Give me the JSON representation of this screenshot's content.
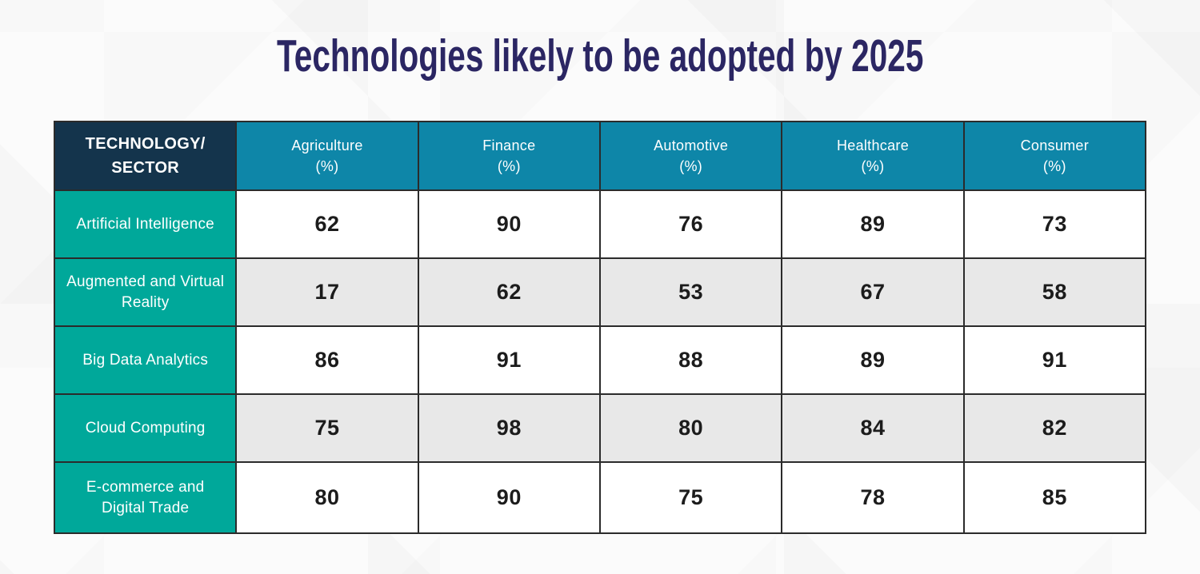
{
  "page": {
    "title": "Technologies likely to be adopted by 2025"
  },
  "colors": {
    "title_text": "#2b2663",
    "corner_header_bg": "#14344c",
    "column_header_bg": "#0e86a8",
    "row_header_bg": "#00a89a",
    "row_alt_bg": "#e8e8e8",
    "cell_border": "#2b2b2b",
    "value_text": "#1c1c1c"
  },
  "table": {
    "corner_header": "TECHNOLOGY/\nSECTOR",
    "unit": "(%)",
    "columns": [
      "Agriculture",
      "Finance",
      "Automotive",
      "Healthcare",
      "Consumer"
    ],
    "rows": [
      {
        "label": "Artificial Intelligence",
        "values": [
          "62",
          "90",
          "76",
          "89",
          "73"
        ]
      },
      {
        "label": "Augmented and Virtual Reality",
        "values": [
          "17",
          "62",
          "53",
          "67",
          "58"
        ]
      },
      {
        "label": "Big Data Analytics",
        "values": [
          "86",
          "91",
          "88",
          "89",
          "91"
        ]
      },
      {
        "label": "Cloud Computing",
        "values": [
          "75",
          "98",
          "80",
          "84",
          "82"
        ]
      },
      {
        "label": "E-commerce and Digital Trade",
        "values": [
          "80",
          "90",
          "75",
          "78",
          "85"
        ]
      }
    ]
  },
  "chart_data": {
    "type": "table",
    "title": "Technologies likely to be adopted by 2025",
    "row_header": "TECHNOLOGY/SECTOR",
    "columns": [
      "Agriculture (%)",
      "Finance (%)",
      "Automotive (%)",
      "Healthcare (%)",
      "Consumer (%)"
    ],
    "categories": [
      "Artificial Intelligence",
      "Augmented and Virtual Reality",
      "Big Data Analytics",
      "Cloud Computing",
      "E-commerce and Digital Trade"
    ],
    "series": [
      {
        "name": "Agriculture (%)",
        "values": [
          62,
          17,
          86,
          75,
          80
        ]
      },
      {
        "name": "Finance (%)",
        "values": [
          90,
          62,
          91,
          98,
          90
        ]
      },
      {
        "name": "Automotive (%)",
        "values": [
          76,
          53,
          88,
          80,
          75
        ]
      },
      {
        "name": "Healthcare (%)",
        "values": [
          89,
          67,
          89,
          84,
          78
        ]
      },
      {
        "name": "Consumer (%)",
        "values": [
          73,
          58,
          91,
          82,
          85
        ]
      }
    ]
  }
}
